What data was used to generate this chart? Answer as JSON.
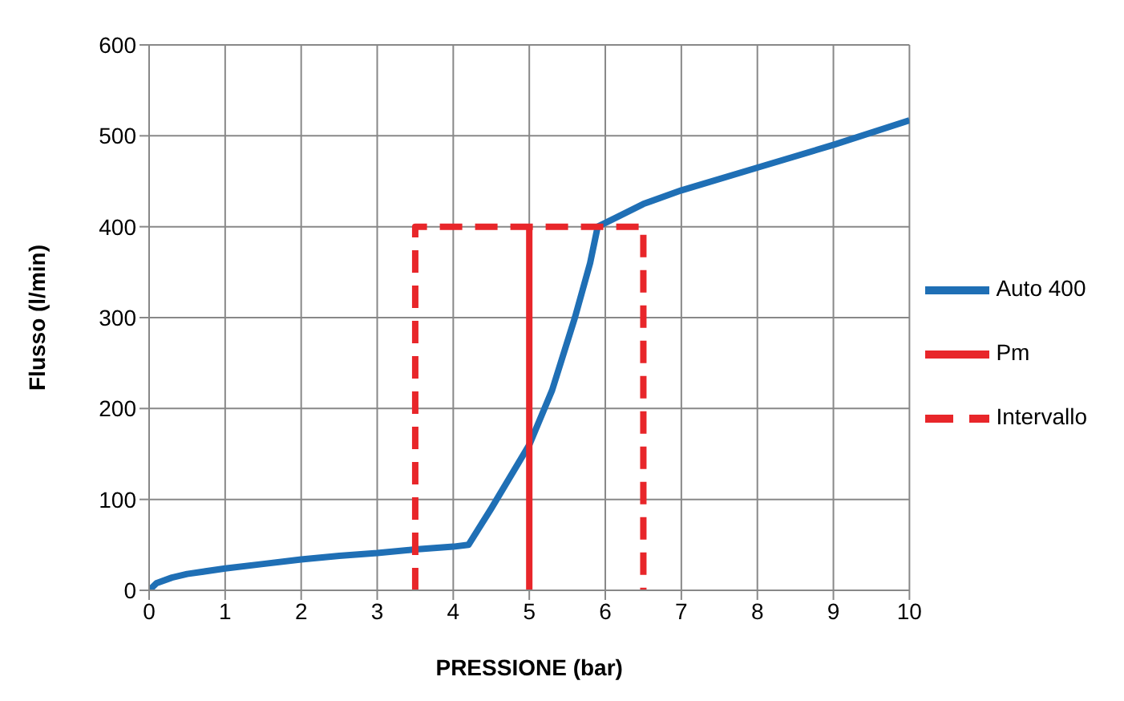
{
  "chart_data": {
    "type": "line",
    "xlabel": "PRESSIONE  (bar)",
    "ylabel": "Flusso (l/min)",
    "xlim": [
      0,
      10
    ],
    "xticks": [
      0,
      1,
      2,
      3,
      4,
      5,
      6,
      7,
      8,
      9,
      10
    ],
    "ylim": [
      0,
      600
    ],
    "yticks": [
      0,
      100,
      200,
      300,
      400,
      500,
      600
    ],
    "grid": true,
    "legend": "right",
    "marker": "none",
    "series": [
      {
        "name": "Auto 400",
        "color": "#1f6fb5",
        "line_style": "solid",
        "x": [
          0,
          0.1,
          0.3,
          0.5,
          1,
          1.5,
          2,
          2.5,
          3,
          3.5,
          4,
          4.2,
          4.5,
          5,
          5.3,
          5.6,
          5.8,
          5.9,
          6.5,
          7,
          8,
          9,
          10
        ],
        "values": [
          0,
          8,
          14,
          18,
          24,
          29,
          34,
          38,
          41,
          45,
          48,
          50,
          90,
          160,
          220,
          300,
          360,
          400,
          425,
          440,
          465,
          490,
          517
        ]
      },
      {
        "name": "Pm",
        "color": "#e8262a",
        "line_style": "solid",
        "x": [
          5,
          5
        ],
        "values": [
          0,
          400
        ]
      },
      {
        "name": "Intervallo",
        "color": "#e8262a",
        "line_style": "dashed",
        "x": [
          3.5,
          3.5,
          6.5,
          6.5
        ],
        "values": [
          0,
          400,
          400,
          0
        ]
      }
    ]
  }
}
